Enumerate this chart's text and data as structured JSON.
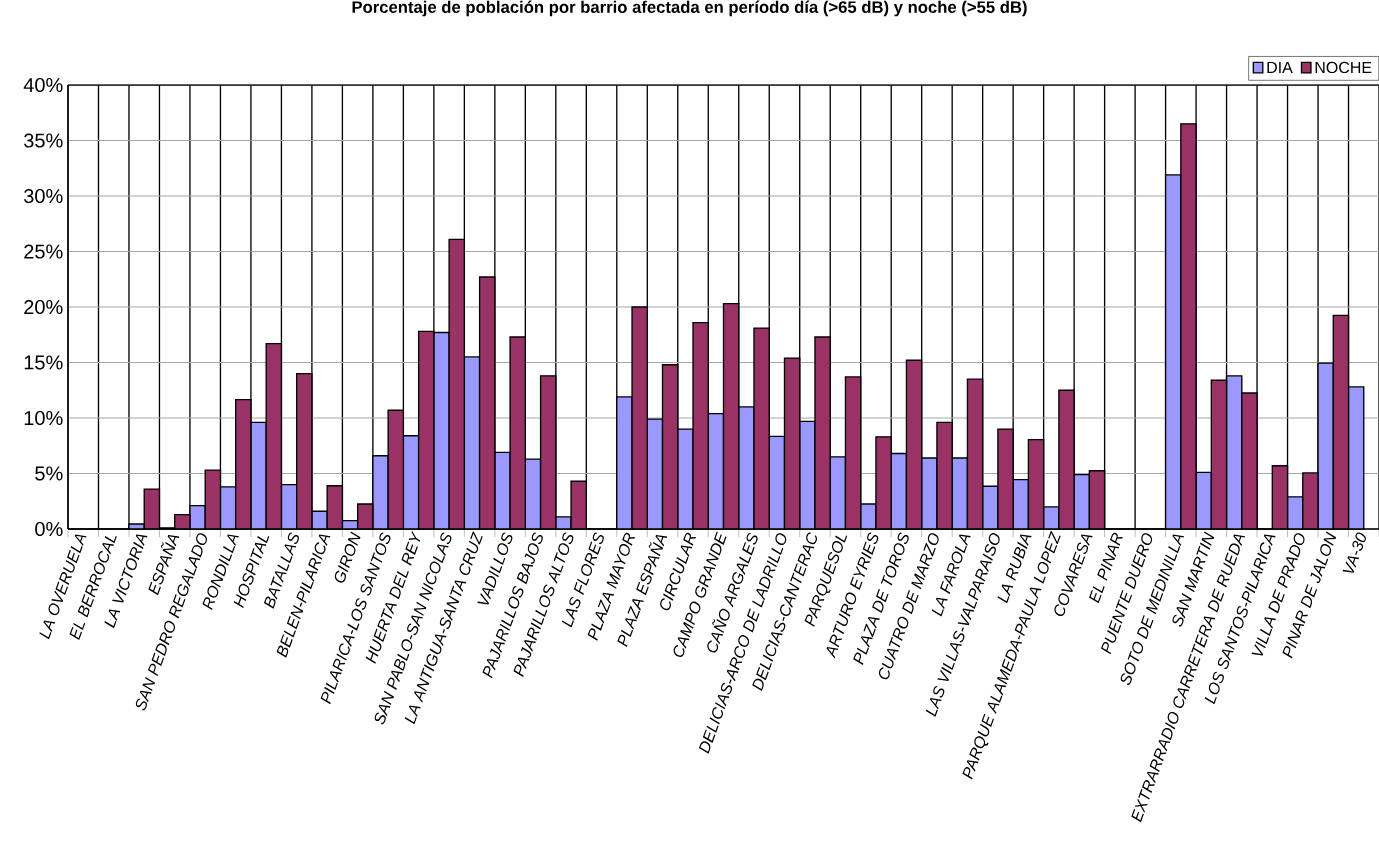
{
  "chart_data": {
    "type": "bar",
    "title": "Porcentaje de población por barrio afectada en período día (>65 dB) y noche (>55 dB)",
    "categories": [
      "LA OVERUELA",
      "EL BERROCAL",
      "LA VICTORIA",
      "ESPAÑA",
      "SAN PEDRO REGALADO",
      "RONDILLA",
      "HOSPITAL",
      "BATALLAS",
      "BELEN-PILARICA",
      "GIRON",
      "PILARICA-LOS SANTOS",
      "HUERTA DEL REY",
      "SAN PABLO-SAN NICOLAS",
      "LA ANTIGUA-SANTA CRUZ",
      "VADILLOS",
      "PAJARILLOS BAJOS",
      "PAJARILLOS ALTOS",
      "LAS FLORES",
      "PLAZA MAYOR",
      "PLAZA ESPAÑA",
      "CIRCULAR",
      "CAMPO GRANDE",
      "CAÑO ARGALES",
      "DELICIAS-ARCO DE LADRILLO",
      "DELICIAS-CANTERAC",
      "PARQUESOL",
      "ARTURO EYRIES",
      "PLAZA DE TOROS",
      "CUATRO DE MARZO",
      "LA FAROLA",
      "LAS VILLAS-VALPARAISO",
      "LA RUBIA",
      "PARQUE ALAMEDA-PAULA LOPEZ",
      "COVARESA",
      "EL PINAR",
      "PUENTE DUERO",
      "SOTO DE MEDINILLA",
      "SAN MARTIN",
      "EXTRARRADIO CARRETERA DE RUEDA",
      "LOS SANTOS-PILARICA",
      "VILLA DE PRADO",
      "PINAR DE JALON",
      "VA-30"
    ],
    "series": [
      {
        "name": "DIA",
        "color": "#9999ff",
        "values": [
          0,
          0,
          0.45,
          0.1,
          2.1,
          3.8,
          9.6,
          4.0,
          1.6,
          0.75,
          6.6,
          8.4,
          17.7,
          15.5,
          6.9,
          6.3,
          1.1,
          0,
          11.9,
          9.9,
          9.0,
          10.4,
          11.0,
          8.35,
          9.7,
          6.5,
          2.25,
          6.8,
          6.4,
          6.4,
          3.85,
          4.45,
          2.0,
          4.9,
          0,
          0,
          31.9,
          5.1,
          13.8,
          0,
          2.9,
          14.95,
          12.8
        ]
      },
      {
        "name": "NOCHE",
        "color": "#993366",
        "values": [
          0,
          0,
          3.6,
          1.3,
          5.3,
          11.65,
          16.7,
          14.0,
          3.9,
          2.25,
          10.7,
          17.8,
          26.1,
          22.7,
          17.3,
          13.8,
          4.3,
          0,
          20.0,
          14.8,
          18.6,
          20.3,
          18.1,
          15.4,
          17.3,
          13.7,
          8.3,
          15.2,
          9.6,
          13.5,
          9.0,
          8.05,
          12.5,
          5.25,
          0,
          0,
          36.5,
          13.4,
          12.25,
          5.7,
          5.05,
          19.25,
          null
        ]
      }
    ],
    "ylim": [
      0,
      40
    ],
    "yticks": [
      {
        "value": 0,
        "label": "0%"
      },
      {
        "value": 5,
        "label": "5%"
      },
      {
        "value": 10,
        "label": "10%"
      },
      {
        "value": 15,
        "label": "15%"
      },
      {
        "value": 20,
        "label": "20%"
      },
      {
        "value": 25,
        "label": "25%"
      },
      {
        "value": 30,
        "label": "30%"
      },
      {
        "value": 35,
        "label": "35%"
      },
      {
        "value": 40,
        "label": "40%"
      }
    ],
    "grid": true,
    "legend": "top right"
  }
}
